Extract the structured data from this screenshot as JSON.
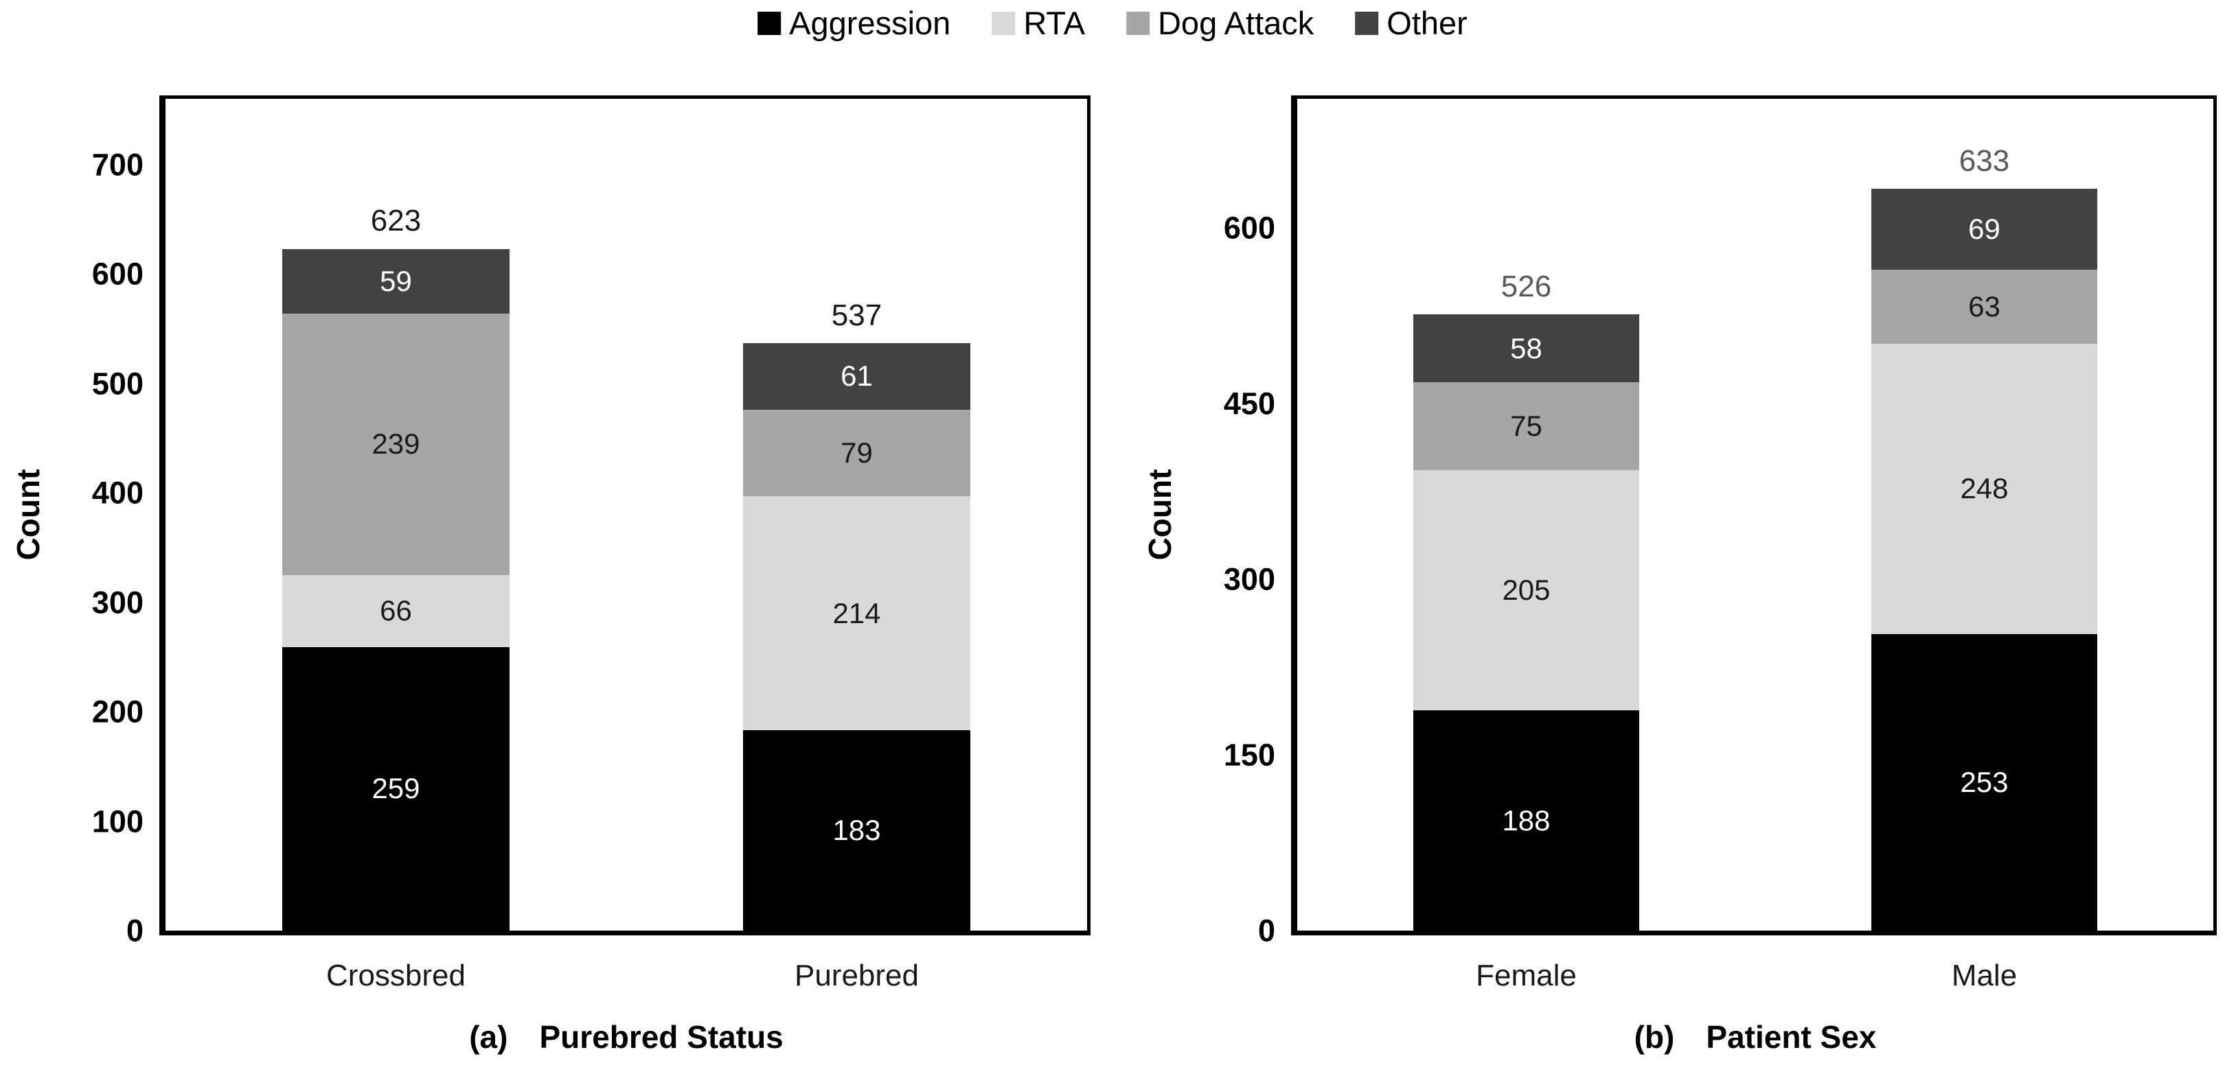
{
  "legend": {
    "position": "top",
    "items": [
      {
        "label": "Aggression",
        "color": "#000000",
        "value_text_color": "#ffffff"
      },
      {
        "label": "RTA",
        "color": "#d9d9d9",
        "value_text_color": "#1a1a1a"
      },
      {
        "label": "Dog Attack",
        "color": "#a6a6a6",
        "value_text_color": "#1a1a1a"
      },
      {
        "label": "Other",
        "color": "#424242",
        "value_text_color": "#ffffff"
      }
    ]
  },
  "chart_data": [
    {
      "type": "bar",
      "stacked": true,
      "caption_prefix": "(a)",
      "caption_label": "Purebred Status",
      "ylabel": "Count",
      "categories": [
        "Crossbred",
        "Purebred"
      ],
      "series": [
        {
          "name": "Aggression",
          "values": [
            259,
            183
          ]
        },
        {
          "name": "RTA",
          "values": [
            66,
            214
          ]
        },
        {
          "name": "Dog Attack",
          "values": [
            239,
            79
          ]
        },
        {
          "name": "Other",
          "values": [
            59,
            61
          ]
        }
      ],
      "totals": [
        623,
        537
      ],
      "total_label_color": "#1a1a1a",
      "yticks": [
        0,
        100,
        200,
        300,
        400,
        500,
        600,
        700
      ],
      "ylim": [
        0,
        760
      ],
      "grid": false
    },
    {
      "type": "bar",
      "stacked": true,
      "caption_prefix": "(b)",
      "caption_label": "Patient Sex",
      "ylabel": "Count",
      "categories": [
        "Female",
        "Male"
      ],
      "series": [
        {
          "name": "Aggression",
          "values": [
            188,
            253
          ]
        },
        {
          "name": "RTA",
          "values": [
            205,
            248
          ]
        },
        {
          "name": "Dog Attack",
          "values": [
            75,
            63
          ]
        },
        {
          "name": "Other",
          "values": [
            58,
            69
          ]
        }
      ],
      "totals": [
        526,
        633
      ],
      "total_label_color": "#595959",
      "yticks": [
        0,
        150,
        300,
        450,
        600
      ],
      "ylim": [
        0,
        710
      ],
      "grid": false
    }
  ]
}
